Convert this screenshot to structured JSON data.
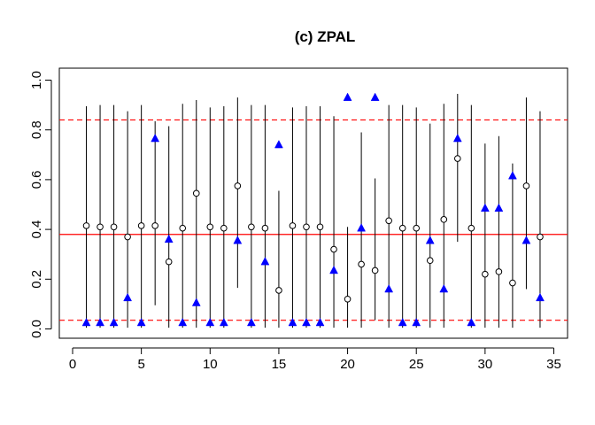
{
  "chart_data": {
    "type": "scatter",
    "title": "(c) ZPAL",
    "xlabel": "",
    "ylabel": "",
    "xlim": [
      0,
      35
    ],
    "ylim": [
      0,
      1.0
    ],
    "x_ticks": [
      "0",
      "5",
      "10",
      "15",
      "20",
      "25",
      "30",
      "35"
    ],
    "y_ticks": [
      "0.0",
      "0.2",
      "0.4",
      "0.6",
      "0.8",
      "1.0"
    ],
    "grid": false,
    "legend": "none",
    "colors": {
      "triangle": "#0000FF",
      "hline": "#FF0000",
      "circle": "#000000",
      "interval": "#000000"
    },
    "x": [
      1,
      2,
      3,
      4,
      5,
      6,
      7,
      8,
      9,
      10,
      11,
      12,
      13,
      14,
      15,
      16,
      17,
      18,
      19,
      20,
      21,
      22,
      23,
      24,
      25,
      26,
      27,
      28,
      29,
      30,
      31,
      32,
      33,
      34
    ],
    "series": [
      {
        "marker": "open-circle",
        "values": [
          0.415,
          0.41,
          0.41,
          0.37,
          0.415,
          0.415,
          0.27,
          0.405,
          0.545,
          0.41,
          0.405,
          0.575,
          0.41,
          0.405,
          0.155,
          0.415,
          0.41,
          0.41,
          0.32,
          0.12,
          0.26,
          0.235,
          0.435,
          0.405,
          0.405,
          0.275,
          0.44,
          0.685,
          0.405,
          0.22,
          0.23,
          0.185,
          0.575,
          0.37
        ]
      },
      {
        "marker": "filled-triangle",
        "values": [
          0.025,
          0.025,
          0.025,
          0.125,
          0.025,
          0.765,
          0.36,
          0.025,
          0.105,
          0.025,
          0.025,
          0.355,
          0.025,
          0.27,
          0.74,
          0.025,
          0.025,
          0.025,
          0.235,
          0.93,
          0.405,
          0.93,
          0.16,
          0.025,
          0.025,
          0.355,
          0.16,
          0.765,
          0.025,
          0.485,
          0.485,
          0.615,
          0.355,
          0.125
        ]
      }
    ],
    "intervals": {
      "lower": [
        0.005,
        0.005,
        0.005,
        0.005,
        0.005,
        0.095,
        0.005,
        0.005,
        0.005,
        0.005,
        0.005,
        0.165,
        0.005,
        0.005,
        0.005,
        0.005,
        0.005,
        0.005,
        0.005,
        0.005,
        0.005,
        0.035,
        0.005,
        0.005,
        0.005,
        0.005,
        0.005,
        0.35,
        0.005,
        0.005,
        0.005,
        0.005,
        0.16,
        0.005
      ],
      "upper": [
        0.895,
        0.9,
        0.9,
        0.875,
        0.9,
        0.835,
        0.815,
        0.905,
        0.92,
        0.89,
        0.895,
        0.93,
        0.9,
        0.9,
        0.555,
        0.89,
        0.895,
        0.895,
        0.855,
        0.41,
        0.79,
        0.605,
        0.9,
        0.9,
        0.89,
        0.825,
        0.905,
        0.945,
        0.9,
        0.745,
        0.775,
        0.665,
        0.93,
        0.875
      ]
    },
    "reference_lines": {
      "solid": 0.38,
      "dashed": [
        0.035,
        0.84
      ]
    }
  }
}
